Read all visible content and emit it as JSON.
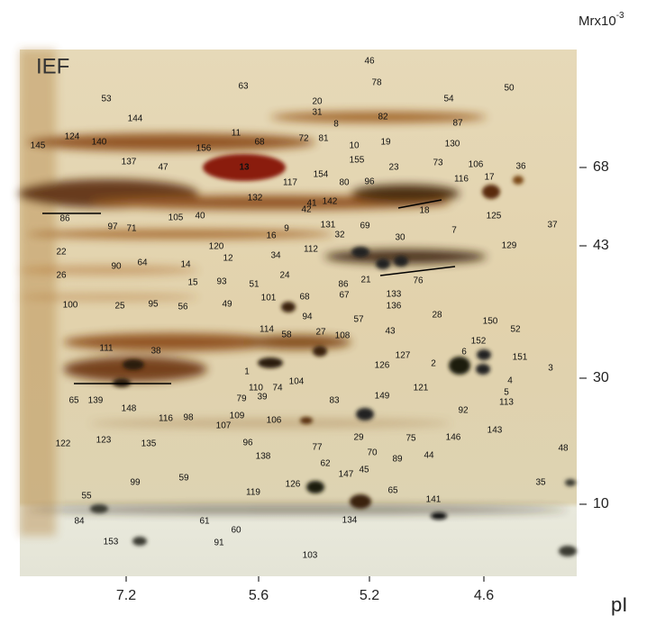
{
  "overlay_label": "IEF",
  "y_axis_label": {
    "text": "Mrx10",
    "superscript": "-3"
  },
  "x_axis_label": "pI",
  "mr_ticks": [
    "68",
    "43",
    "30",
    "10"
  ],
  "pi_ticks": [
    "7.2",
    "5.6",
    "5.2",
    "4.6"
  ],
  "spots": [
    "46",
    "78",
    "63",
    "53",
    "54",
    "50",
    "20",
    "144",
    "124",
    "140",
    "31",
    "82",
    "8",
    "87",
    "11",
    "68",
    "72",
    "81",
    "10",
    "19",
    "130",
    "145",
    "156",
    "155",
    "73",
    "137",
    "47",
    "13",
    "154",
    "80",
    "96",
    "23",
    "106",
    "17",
    "36",
    "116",
    "117",
    "142",
    "41",
    "18",
    "132",
    "42",
    "86",
    "97",
    "71",
    "105",
    "40",
    "16",
    "9",
    "131",
    "125",
    "37",
    "69",
    "30",
    "32",
    "7",
    "129",
    "22",
    "90",
    "120",
    "12",
    "34",
    "112",
    "64",
    "14",
    "24",
    "15",
    "93",
    "51",
    "86",
    "67",
    "68",
    "26",
    "25",
    "95",
    "56",
    "101",
    "21",
    "76",
    "133",
    "136",
    "57",
    "94",
    "49",
    "100",
    "28",
    "150",
    "52",
    "114",
    "58",
    "27",
    "108",
    "43",
    "152",
    "6",
    "151",
    "111",
    "38",
    "127",
    "126",
    "2",
    "3",
    "121",
    "1",
    "110",
    "74",
    "104",
    "4",
    "5",
    "113",
    "65",
    "148",
    "139",
    "79",
    "39",
    "83",
    "149",
    "116",
    "98",
    "109",
    "107",
    "106",
    "92",
    "29",
    "75",
    "146",
    "143",
    "122",
    "123",
    "135",
    "96",
    "77",
    "138",
    "44",
    "62",
    "48",
    "70",
    "89",
    "99",
    "59",
    "35",
    "147",
    "45",
    "126",
    "119",
    "55",
    "65",
    "141",
    "84",
    "61",
    "60",
    "134",
    "153",
    "91",
    "103"
  ]
}
